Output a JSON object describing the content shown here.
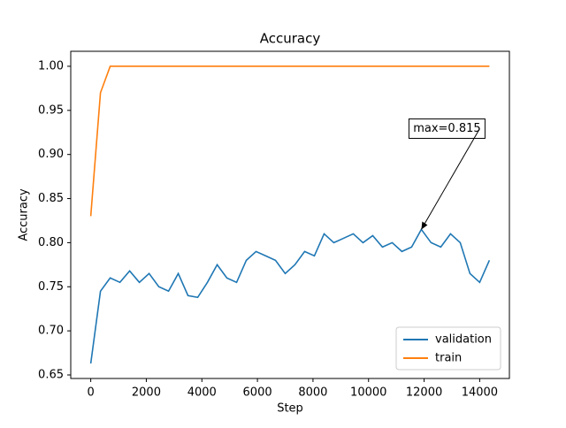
{
  "chart_data": {
    "type": "line",
    "title": "Accuracy",
    "xlabel": "Step",
    "ylabel": "Accuracy",
    "x": [
      0,
      350,
      700,
      1050,
      1400,
      1750,
      2100,
      2450,
      2800,
      3150,
      3500,
      3850,
      4200,
      4550,
      4900,
      5250,
      5600,
      5950,
      6300,
      6650,
      7000,
      7350,
      7700,
      8050,
      8400,
      8750,
      9100,
      9450,
      9800,
      10150,
      10500,
      10850,
      11200,
      11550,
      11900,
      12250,
      12600,
      12950,
      13300,
      13650,
      14000,
      14350
    ],
    "series": [
      {
        "name": "validation",
        "color": "#1f77b4",
        "values": [
          0.663,
          0.745,
          0.76,
          0.755,
          0.768,
          0.755,
          0.765,
          0.75,
          0.745,
          0.765,
          0.74,
          0.738,
          0.755,
          0.775,
          0.76,
          0.755,
          0.78,
          0.79,
          0.785,
          0.78,
          0.765,
          0.775,
          0.79,
          0.785,
          0.81,
          0.8,
          0.805,
          0.81,
          0.8,
          0.808,
          0.795,
          0.8,
          0.79,
          0.795,
          0.815,
          0.8,
          0.795,
          0.81,
          0.8,
          0.765,
          0.755,
          0.78
        ]
      },
      {
        "name": "train",
        "color": "#ff7f0e",
        "values": [
          0.83,
          0.97,
          1.0,
          1.0,
          1.0,
          1.0,
          1.0,
          1.0,
          1.0,
          1.0,
          1.0,
          1.0,
          1.0,
          1.0,
          1.0,
          1.0,
          1.0,
          1.0,
          1.0,
          1.0,
          1.0,
          1.0,
          1.0,
          1.0,
          1.0,
          1.0,
          1.0,
          1.0,
          1.0,
          1.0,
          1.0,
          1.0,
          1.0,
          1.0,
          1.0,
          1.0,
          1.0,
          1.0,
          1.0,
          1.0,
          1.0,
          1.0
        ]
      }
    ],
    "xlim": [
      -720,
      15070
    ],
    "ylim": [
      0.646,
      1.017
    ],
    "xticks": [
      0,
      2000,
      4000,
      6000,
      8000,
      10000,
      12000,
      14000
    ],
    "yticks": [
      0.65,
      {
        "value": 0.7,
        "label": "0.70"
      },
      0.75,
      {
        "value": 0.8,
        "label": "0.80"
      },
      0.85,
      {
        "value": 0.9,
        "label": "0.90"
      },
      0.95,
      {
        "value": 1.0,
        "label": "1.00"
      }
    ],
    "annotations": [
      {
        "text": "max=0.815",
        "x": 11900,
        "y": 0.815
      }
    ],
    "legend": "lower right"
  }
}
